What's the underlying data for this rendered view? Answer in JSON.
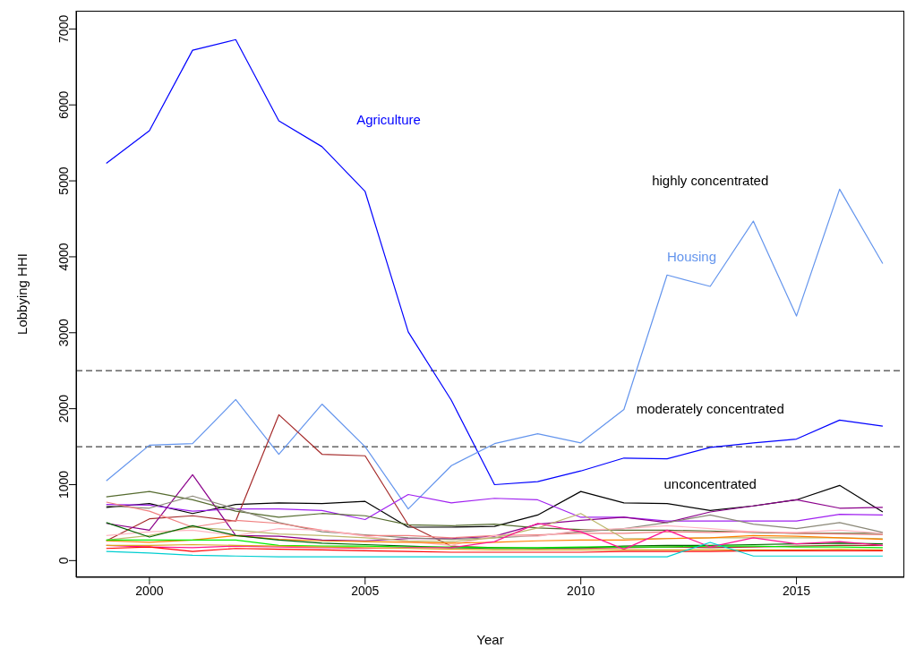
{
  "chart_data": {
    "type": "line",
    "xlabel": "Year",
    "ylabel": "Lobbying HHI",
    "x": [
      1999,
      2000,
      2001,
      2002,
      2003,
      2004,
      2005,
      2006,
      2007,
      2008,
      2009,
      2010,
      2011,
      2012,
      2013,
      2014,
      2015,
      2016,
      2017
    ],
    "series": [
      {
        "name": "Agriculture",
        "color": "#0000ff",
        "values": [
          5230,
          5660,
          6720,
          6860,
          5790,
          5450,
          4860,
          3010,
          2110,
          1000,
          1040,
          1180,
          1350,
          1340,
          1490,
          1550,
          1600,
          1850,
          1770
        ]
      },
      {
        "name": "Housing",
        "color": "#6495ed",
        "values": [
          1050,
          1520,
          1540,
          2120,
          1400,
          2060,
          1500,
          680,
          1250,
          1540,
          1670,
          1550,
          1990,
          3760,
          3610,
          4470,
          3220,
          4890,
          3910
        ]
      },
      {
        "color": "#000000",
        "values": [
          700,
          750,
          620,
          740,
          760,
          750,
          780,
          440,
          440,
          450,
          600,
          910,
          760,
          750,
          660,
          720,
          800,
          990,
          640
        ]
      },
      {
        "color": "#a52a2a",
        "values": [
          260,
          550,
          590,
          520,
          1920,
          1400,
          1380,
          470,
          190,
          170,
          160,
          160,
          170,
          180,
          170,
          180,
          190,
          200,
          200
        ]
      },
      {
        "color": "#a020f0",
        "values": [
          740,
          730,
          650,
          680,
          680,
          660,
          540,
          870,
          760,
          820,
          800,
          570,
          570,
          520,
          520,
          520,
          520,
          610,
          600
        ]
      },
      {
        "color": "#8b008b",
        "values": [
          490,
          400,
          1130,
          330,
          320,
          270,
          260,
          290,
          290,
          320,
          480,
          530,
          570,
          500,
          640,
          720,
          800,
          690,
          700
        ]
      },
      {
        "color": "#556b2f",
        "values": [
          840,
          910,
          800,
          650,
          570,
          620,
          590,
          470,
          460,
          480,
          430,
          410,
          400,
          400,
          390,
          370,
          360,
          360,
          360
        ]
      },
      {
        "color": "#8b8878",
        "values": [
          720,
          690,
          850,
          680,
          500,
          380,
          340,
          300,
          280,
          300,
          330,
          380,
          420,
          500,
          600,
          480,
          420,
          500,
          370
        ]
      },
      {
        "color": "#f08080",
        "values": [
          770,
          650,
          440,
          530,
          490,
          400,
          330,
          330,
          300,
          330,
          340,
          360,
          360,
          380,
          370,
          380,
          360,
          350,
          340
        ]
      },
      {
        "color": "#ffb6c1",
        "values": [
          330,
          380,
          400,
          330,
          420,
          400,
          320,
          250,
          200,
          330,
          320,
          400,
          420,
          460,
          420,
          380,
          370,
          400,
          360
        ]
      },
      {
        "color": "#bdb76b",
        "values": [
          270,
          330,
          440,
          400,
          350,
          330,
          300,
          260,
          250,
          300,
          430,
          620,
          290,
          290,
          300,
          300,
          300,
          300,
          290
        ]
      },
      {
        "color": "#ff7f00",
        "values": [
          260,
          240,
          270,
          330,
          280,
          260,
          250,
          240,
          230,
          240,
          260,
          270,
          270,
          290,
          300,
          330,
          320,
          300,
          280
        ]
      },
      {
        "color": "#006400",
        "values": [
          500,
          310,
          460,
          330,
          270,
          230,
          210,
          190,
          170,
          160,
          160,
          170,
          190,
          200,
          200,
          210,
          220,
          230,
          220
        ]
      },
      {
        "color": "#00ee00",
        "values": [
          270,
          270,
          270,
          270,
          200,
          190,
          190,
          180,
          180,
          170,
          170,
          180,
          180,
          180,
          190,
          190,
          180,
          180,
          170
        ]
      },
      {
        "color": "#ff1493",
        "values": [
          200,
          180,
          170,
          190,
          180,
          170,
          160,
          170,
          170,
          250,
          490,
          380,
          150,
          400,
          180,
          300,
          220,
          250,
          200
        ]
      },
      {
        "color": "#daa520",
        "values": [
          200,
          200,
          210,
          200,
          190,
          180,
          170,
          160,
          150,
          140,
          140,
          140,
          140,
          140,
          140,
          140,
          140,
          150,
          140
        ]
      },
      {
        "color": "#ff0000",
        "values": [
          160,
          180,
          120,
          160,
          150,
          140,
          130,
          120,
          110,
          110,
          110,
          110,
          120,
          120,
          120,
          130,
          130,
          130,
          130
        ]
      },
      {
        "color": "#00ced1",
        "values": [
          120,
          100,
          70,
          60,
          50,
          50,
          50,
          50,
          50,
          50,
          50,
          50,
          50,
          50,
          240,
          60,
          60,
          60,
          60
        ]
      }
    ],
    "xlim": [
      1998.3,
      2017.5
    ],
    "xticks": [
      2000,
      2005,
      2010,
      2015
    ],
    "ylim": [
      -220,
      7240
    ],
    "yticks": [
      0,
      1000,
      2000,
      3000,
      4000,
      5000,
      6000,
      7000
    ],
    "ref_lines": [
      {
        "axis": "y",
        "value": 2500,
        "color": "#444444",
        "line_style": "dashed"
      },
      {
        "axis": "y",
        "value": 1500,
        "color": "#444444",
        "line_style": "dashed"
      }
    ],
    "annotations": [
      "highly concentrated",
      "moderately concentrated",
      "unconcentrated"
    ],
    "grid": false,
    "legend": false,
    "marker": "none",
    "line_style": "solid"
  }
}
